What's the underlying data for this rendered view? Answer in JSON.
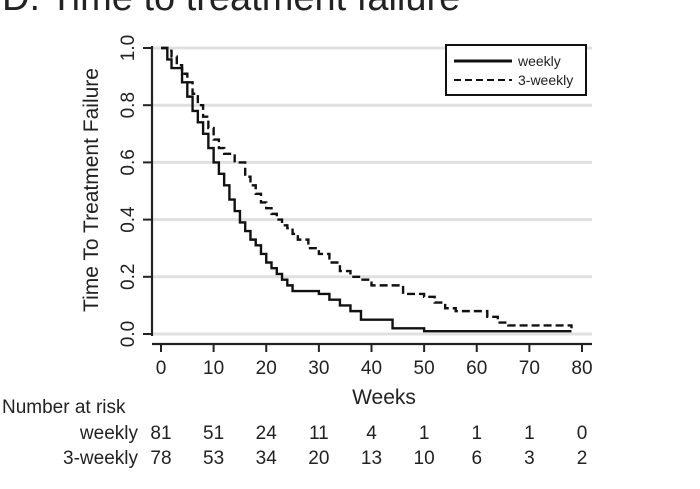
{
  "chart_data": {
    "type": "line",
    "title": "D. Time to treatment failure",
    "xlabel": "Weeks",
    "ylabel": "Time To Treatment Failure",
    "xlim": [
      0,
      80
    ],
    "ylim": [
      0,
      1
    ],
    "x_ticks": [
      "0",
      "10",
      "20",
      "30",
      "40",
      "50",
      "60",
      "70",
      "80"
    ],
    "y_ticks": [
      "0.0",
      "0.2",
      "0.4",
      "0.6",
      "0.8",
      "1.0"
    ],
    "grid": "horizontal",
    "legend_position": "top-right",
    "series": [
      {
        "name": "weekly",
        "style": "solid",
        "x": [
          0,
          1.2,
          2,
          4,
          5,
          6,
          7,
          8,
          9,
          10,
          11,
          12,
          13,
          14,
          15,
          16,
          17,
          18,
          19,
          20,
          21,
          22,
          23,
          24,
          25,
          30,
          32,
          34,
          36,
          38,
          42,
          44,
          48,
          50,
          60,
          70,
          78
        ],
        "y": [
          1.0,
          0.96,
          0.93,
          0.88,
          0.83,
          0.78,
          0.74,
          0.7,
          0.65,
          0.6,
          0.56,
          0.52,
          0.47,
          0.43,
          0.39,
          0.36,
          0.33,
          0.31,
          0.28,
          0.25,
          0.23,
          0.21,
          0.19,
          0.17,
          0.15,
          0.14,
          0.12,
          0.1,
          0.08,
          0.05,
          0.05,
          0.02,
          0.02,
          0.01,
          0.01,
          0.01,
          0.01
        ]
      },
      {
        "name": "3-weekly",
        "style": "dashed",
        "x": [
          0,
          1.2,
          2,
          3,
          4,
          5,
          6,
          7,
          8,
          9,
          10,
          11,
          12,
          14,
          16,
          17,
          18,
          19,
          20,
          21,
          22,
          23,
          24,
          25,
          26,
          28,
          30,
          32,
          34,
          36,
          38,
          40,
          44,
          46,
          50,
          52,
          54,
          56,
          60,
          62,
          64,
          66,
          70,
          75,
          78
        ],
        "y": [
          1.0,
          0.99,
          0.97,
          0.94,
          0.91,
          0.88,
          0.84,
          0.8,
          0.76,
          0.72,
          0.68,
          0.65,
          0.63,
          0.6,
          0.55,
          0.52,
          0.49,
          0.46,
          0.44,
          0.42,
          0.4,
          0.38,
          0.37,
          0.35,
          0.33,
          0.3,
          0.28,
          0.25,
          0.22,
          0.2,
          0.19,
          0.17,
          0.17,
          0.14,
          0.13,
          0.11,
          0.09,
          0.08,
          0.08,
          0.06,
          0.04,
          0.03,
          0.03,
          0.03,
          0.02
        ]
      }
    ],
    "risk_table": {
      "heading": "Number at risk",
      "rows": [
        {
          "label": "weekly",
          "counts": [
            "81",
            "51",
            "24",
            "11",
            "4",
            "1",
            "1",
            "1",
            "0"
          ]
        },
        {
          "label": "3-weekly",
          "counts": [
            "78",
            "53",
            "34",
            "20",
            "13",
            "10",
            "6",
            "3",
            "2"
          ]
        }
      ]
    }
  }
}
